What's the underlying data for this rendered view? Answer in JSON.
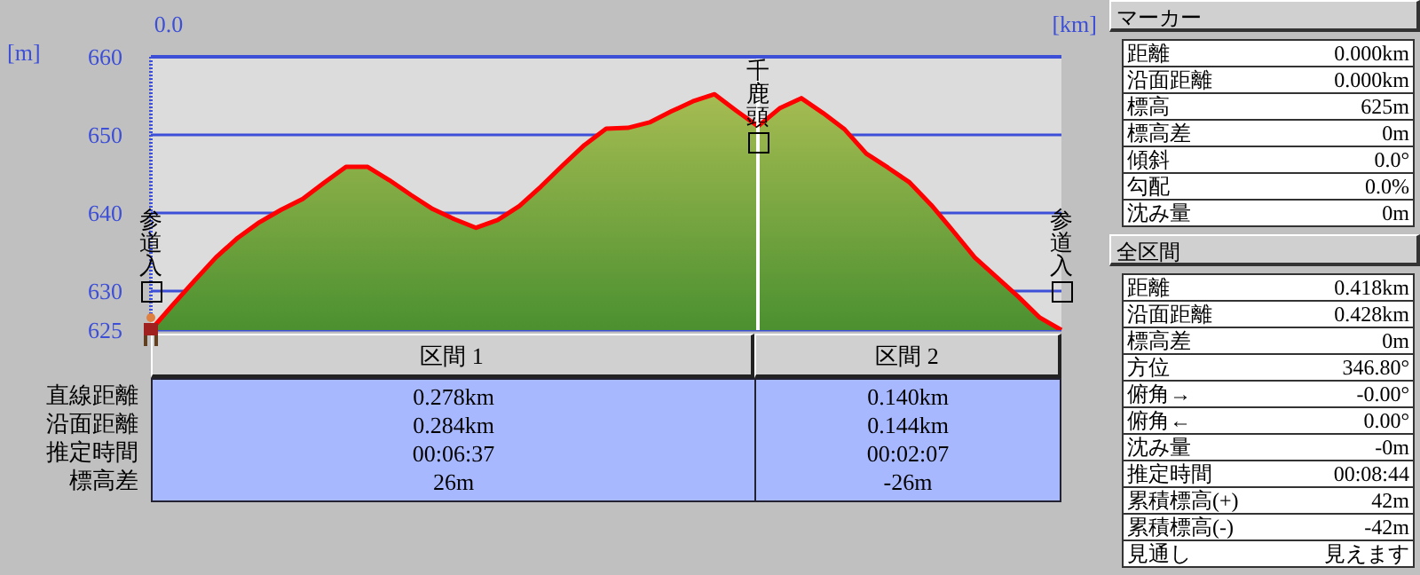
{
  "chart_data": [
    {
      "type": "area",
      "xlabel": "[km]",
      "ylabel": "[m]",
      "categories": [
        "参道入",
        null,
        null,
        null,
        null,
        null,
        null,
        null,
        null,
        null,
        null,
        null,
        null,
        null,
        null,
        null,
        null,
        null,
        null,
        null,
        null,
        null,
        null,
        null,
        null,
        null,
        null,
        null,
        "千鹿頭",
        null,
        null,
        null,
        null,
        null,
        null,
        null,
        null,
        null,
        null,
        null,
        null,
        null,
        "参道入"
      ],
      "series": [
        {
          "color": "#ff0000",
          "values": [
            625,
            628.2,
            631.3,
            634.3,
            636.8,
            638.8,
            640.4,
            641.8,
            643.9,
            645.9,
            645.9,
            644.2,
            642.3,
            640.5,
            639.2,
            638.1,
            639.1,
            640.9,
            643.4,
            646.1,
            648.7,
            650.8,
            650.9,
            651.6,
            653,
            654.3,
            655.2,
            653.1,
            651.1,
            653.4,
            654.7,
            652.8,
            650.7,
            647.6,
            645.8,
            643.9,
            641,
            637.7,
            634.3,
            631.8,
            629.3,
            626.6,
            625
          ]
        }
      ],
      "ylim": [
        625,
        660
      ],
      "yticks": [
        625,
        630,
        640,
        650,
        660
      ],
      "grid": "y",
      "ref_lines": [
        {
          "axis": "x",
          "value": "千鹿頭",
          "color": "#ffffff"
        }
      ],
      "annotations": [
        "0.0"
      ]
    },
    {
      "type": "other",
      "categories": [
        "区間 1",
        "区間 2"
      ],
      "y_categories": [
        "直線距離",
        "沿面距離",
        "推定時間",
        "標高差"
      ],
      "cell_labels": [
        [
          "0.278km",
          "0.140km"
        ],
        [
          "0.284km",
          "0.144km"
        ],
        [
          "00:06:37",
          "00:02:07"
        ],
        [
          "26m",
          "-26m"
        ]
      ]
    },
    {
      "type": "other",
      "title": "マーカー",
      "y_categories": [
        "距離",
        "沿面距離",
        "標高",
        "標高差",
        "傾斜",
        "勾配",
        "沈み量"
      ],
      "cell_labels": [
        [
          "0.000km"
        ],
        [
          "0.000km"
        ],
        [
          "625m"
        ],
        [
          "0m"
        ],
        [
          "0.0°"
        ],
        [
          "0.0%"
        ],
        [
          "0m"
        ]
      ]
    },
    {
      "type": "other",
      "title": "全区間",
      "y_categories": [
        "距離",
        "沿面距離",
        "標高差",
        "方位",
        "俯角→",
        "俯角←",
        "沈み量",
        "推定時間",
        "累積標高(+)",
        "累積標高(-)",
        "見通し"
      ],
      "cell_labels": [
        [
          "0.418km"
        ],
        [
          "0.428km"
        ],
        [
          "0m"
        ],
        [
          "346.80°"
        ],
        [
          "-0.00°"
        ],
        [
          "0.00°"
        ],
        [
          "-0m"
        ],
        [
          "00:08:44"
        ],
        [
          "42m"
        ],
        [
          "-42m"
        ],
        [
          "見えます"
        ]
      ]
    }
  ]
}
